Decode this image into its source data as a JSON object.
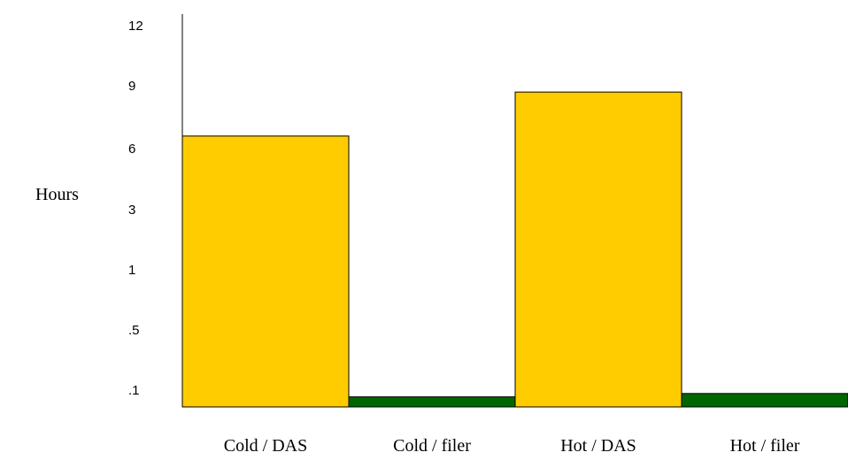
{
  "chart_data": {
    "type": "bar",
    "ylabel": "Hours",
    "y_scale": "non-linear (ordinal ticks)",
    "y_ticks": [
      ".1",
      ".5",
      "1",
      "3",
      "6",
      "9",
      "12"
    ],
    "y_tick_values": [
      0.1,
      0.5,
      1,
      3,
      6,
      9,
      12
    ],
    "categories": [
      "Cold / DAS",
      "Cold / filer",
      "Hot / DAS",
      "Hot / filer"
    ],
    "values": [
      6.6,
      0.06,
      8.7,
      0.08
    ],
    "colors": [
      "#ffcc00",
      "#006600",
      "#ffcc00",
      "#006600"
    ],
    "grid": false,
    "legend": "none"
  }
}
